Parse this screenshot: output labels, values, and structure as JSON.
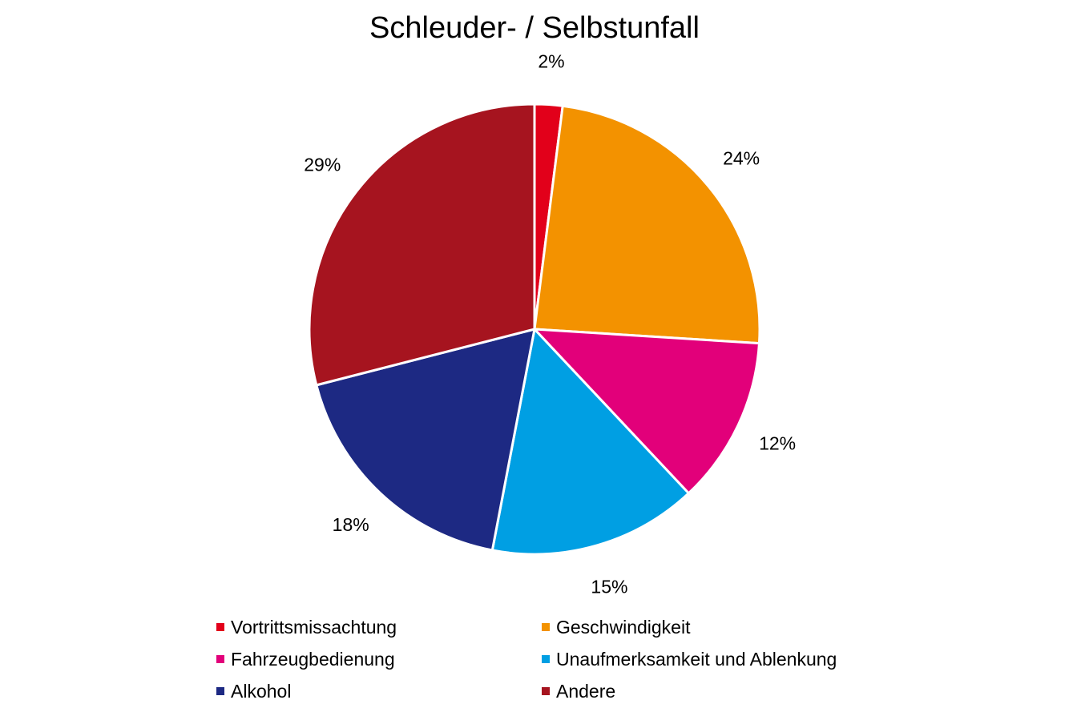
{
  "chart_data": {
    "type": "pie",
    "title": "Schleuder- / Selbstunfall",
    "legend_position": "bottom",
    "slices": [
      {
        "label": "Vortrittsmissachtung",
        "value": 2,
        "display": "2%",
        "color": "#e2001a"
      },
      {
        "label": "Geschwindigkeit",
        "value": 24,
        "display": "24%",
        "color": "#f39200"
      },
      {
        "label": "Fahrzeugbedienung",
        "value": 12,
        "display": "12%",
        "color": "#e2007a"
      },
      {
        "label": "Unaufmerksamkeit und Ablenkung",
        "value": 15,
        "display": "15%",
        "color": "#009fe3"
      },
      {
        "label": "Alkohol",
        "value": 18,
        "display": "18%",
        "color": "#1d2983"
      },
      {
        "label": "Andere",
        "value": 29,
        "display": "29%",
        "color": "#a6141f"
      }
    ]
  }
}
